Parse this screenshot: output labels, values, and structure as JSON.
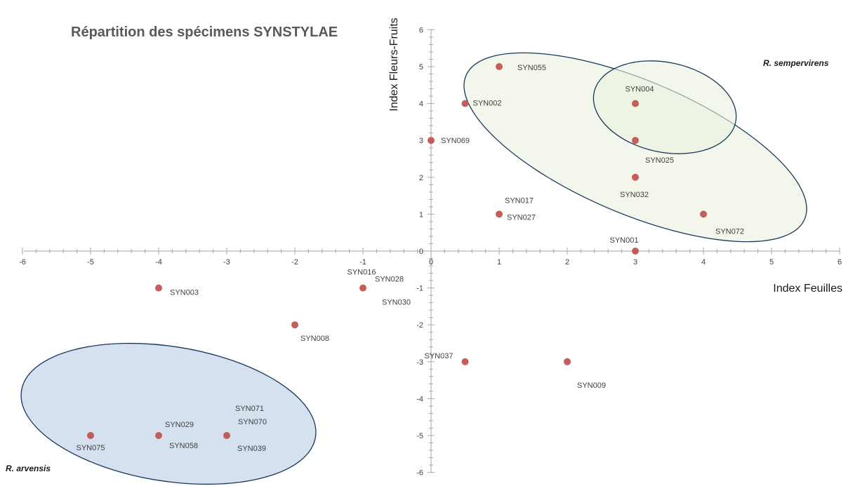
{
  "chart_data": {
    "type": "scatter",
    "title": "Répartition des spécimens SYNSTYLAE",
    "xlabel": "Index Feuilles",
    "ylabel": "Index Fleurs-Fruits",
    "xlim": [
      -6,
      6
    ],
    "ylim": [
      -6,
      6
    ],
    "x_ticks": [
      -6,
      -5,
      -4,
      -3,
      -2,
      -1,
      0,
      1,
      2,
      3,
      4,
      5,
      6
    ],
    "y_ticks": [
      -6,
      -5,
      -4,
      -3,
      -2,
      -1,
      0,
      1,
      2,
      3,
      4,
      5,
      6
    ],
    "grid": false,
    "point_color": "#c0504d",
    "points": [
      {
        "x": 1,
        "y": 5,
        "labels": [
          "SYN055"
        ]
      },
      {
        "x": 0.5,
        "y": 4,
        "labels": [
          "SYN002"
        ]
      },
      {
        "x": 0,
        "y": 3,
        "labels": [
          "SYN069"
        ]
      },
      {
        "x": 3,
        "y": 4,
        "labels": [
          "SYN004"
        ]
      },
      {
        "x": 3,
        "y": 3,
        "labels": [
          "SYN025"
        ]
      },
      {
        "x": 3,
        "y": 2,
        "labels": [
          "SYN032"
        ]
      },
      {
        "x": 1,
        "y": 1,
        "labels": [
          "SYN017",
          "SYN027"
        ]
      },
      {
        "x": 4,
        "y": 1,
        "labels": [
          "SYN072"
        ]
      },
      {
        "x": 3,
        "y": 0,
        "labels": [
          "SYN001"
        ]
      },
      {
        "x": -4,
        "y": -1,
        "labels": [
          "SYN003"
        ]
      },
      {
        "x": -1,
        "y": -1,
        "labels": [
          "SYN016",
          "SYN028",
          "SYN030"
        ]
      },
      {
        "x": -2,
        "y": -2,
        "labels": [
          "SYN008"
        ]
      },
      {
        "x": 0.5,
        "y": -3,
        "labels": [
          "SYN037"
        ]
      },
      {
        "x": 2,
        "y": -3,
        "labels": [
          "SYN009"
        ]
      },
      {
        "x": -5,
        "y": -5,
        "labels": [
          "SYN075"
        ]
      },
      {
        "x": -4,
        "y": -5,
        "labels": [
          "SYN029",
          "SYN058"
        ]
      },
      {
        "x": -3,
        "y": -5,
        "labels": [
          "SYN071",
          "SYN070",
          "SYN039"
        ]
      }
    ],
    "groups": [
      {
        "name": "R. sempervirens",
        "fill": "#ebf1de",
        "outline": "#17375e"
      },
      {
        "name": "R. arvensis",
        "fill": "#b9cde5",
        "outline": "#17375e"
      }
    ]
  }
}
